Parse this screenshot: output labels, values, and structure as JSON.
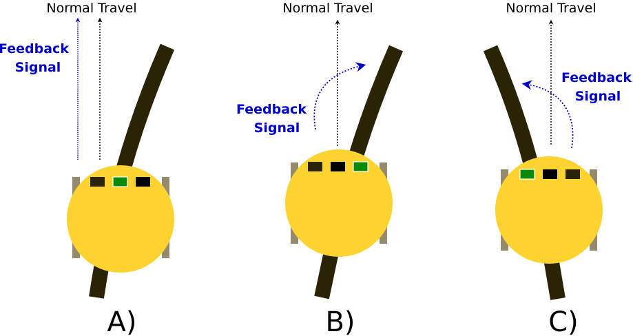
{
  "colors": {
    "robot_body": "#FDD330",
    "track": "#2B2306",
    "wheel": "#968A6C",
    "sensor_dark": "#2B2306",
    "sensor_black": "#000000",
    "sensor_active": "#0A8A0A",
    "feedback": "#0000CC",
    "normal_arrow": "#000000"
  },
  "panels": [
    {
      "id": "a",
      "label": "A)",
      "normal_travel": "Normal Travel",
      "feedback_line1": "Feedback",
      "feedback_line2": "Signal",
      "sensors": [
        "dark",
        "active",
        "black"
      ]
    },
    {
      "id": "b",
      "label": "B)",
      "normal_travel": "Normal Travel",
      "feedback_line1": "Feedback",
      "feedback_line2": "Signal",
      "sensors": [
        "dark",
        "black",
        "active"
      ]
    },
    {
      "id": "c",
      "label": "C)",
      "normal_travel": "Normal Travel",
      "feedback_line1": "Feedback",
      "feedback_line2": "Signal",
      "sensors": [
        "active",
        "black",
        "dark"
      ]
    }
  ]
}
